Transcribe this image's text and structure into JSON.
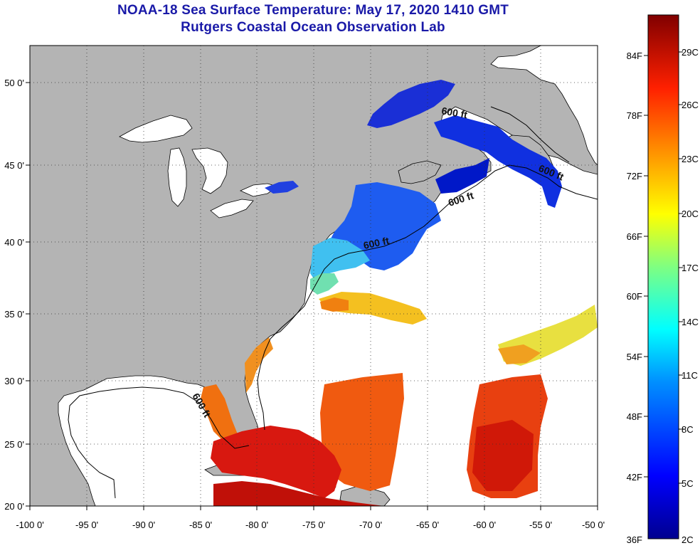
{
  "title": {
    "line1": "NOAA-18 Sea Surface Temperature:  May 17, 2020 1410 GMT",
    "line2": "Rutgers Coastal Ocean Observation Lab"
  },
  "axes": {
    "lon_labels": [
      "-100 0'",
      "-95 0'",
      "-90 0'",
      "-85 0'",
      "-80 0'",
      "-75 0'",
      "-70 0'",
      "-65 0'",
      "-60 0'",
      "-55 0'",
      "-50 0'"
    ],
    "lat_labels": [
      "50 0'",
      "45 0'",
      "40 0'",
      "35 0'",
      "30 0'",
      "25 0'",
      "20 0'"
    ]
  },
  "contour_labels": [
    "600 ft",
    "600 ft",
    "600 ft",
    "600 ft",
    "600 ft"
  ],
  "colorbar": {
    "fahrenheit": [
      "84F",
      "78F",
      "72F",
      "66F",
      "60F",
      "54F",
      "48F",
      "42F",
      "36F"
    ],
    "celsius": [
      "29C",
      "26C",
      "23C",
      "20C",
      "17C",
      "14C",
      "11C",
      "8C",
      "5C",
      "2C"
    ]
  },
  "colors": {
    "land": "#b4b4b4",
    "ocean_nodata": "#ffffff",
    "title": "#1a1aa8"
  }
}
